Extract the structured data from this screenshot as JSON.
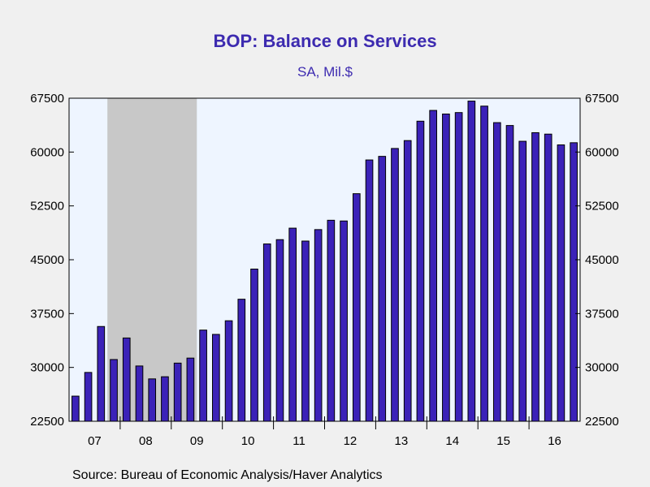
{
  "title": "BOP: Balance on Services",
  "subtitle": "SA, Mil.$",
  "source": "Source:  Bureau of Economic Analysis/Haver Analytics",
  "colors": {
    "bar": "#3b22b8",
    "plot_bg": "#eef5ff",
    "recession": "#c8c8c8",
    "title": "#3d2bb0"
  },
  "chart_data": {
    "type": "bar",
    "frequency": "quarterly",
    "start": "2007 Q1",
    "values": [
      26000,
      29300,
      35700,
      31100,
      34100,
      30200,
      28400,
      28700,
      30600,
      31300,
      35200,
      34600,
      36500,
      39500,
      43700,
      47200,
      47800,
      49400,
      47600,
      49200,
      50500,
      50400,
      54200,
      58900,
      59400,
      60500,
      61600,
      64300,
      65800,
      65300,
      65500,
      67100,
      66400,
      64100,
      63700,
      61500,
      62700,
      62500,
      61000,
      61300
    ],
    "ylim": [
      22500,
      67500
    ],
    "yticks": [
      22500,
      30000,
      37500,
      45000,
      52500,
      60000,
      67500
    ],
    "ytick_labels": [
      "22500",
      "30000",
      "37500",
      "45000",
      "52500",
      "60000",
      "67500"
    ],
    "x_tick_labels": [
      "07",
      "08",
      "09",
      "10",
      "11",
      "12",
      "13",
      "14",
      "15",
      "16"
    ],
    "recession": {
      "start": "2007 Q4",
      "end": "2009 Q2"
    },
    "right_axis": true,
    "grid": false,
    "xlabel": "",
    "ylabel": ""
  }
}
